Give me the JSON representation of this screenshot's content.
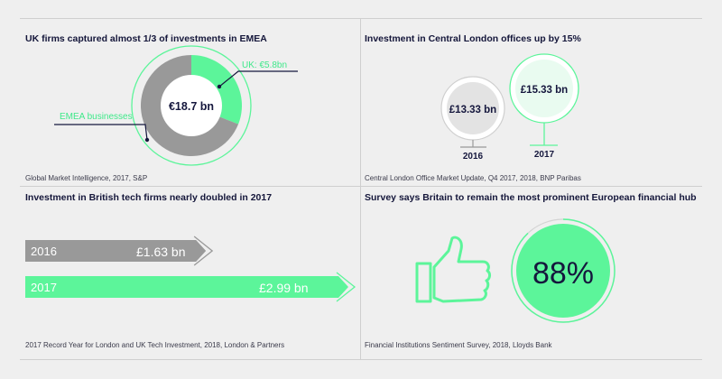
{
  "colors": {
    "green": "#5cf59a",
    "green_light": "#e9fbf0",
    "grey": "#999999",
    "grey_light": "#e3e3e3",
    "navy": "#15173d",
    "background": "#efefef"
  },
  "icons": {
    "thumbs_up": "thumbs-up-icon"
  },
  "panels": {
    "p1": {
      "title": "UK firms captured almost 1/3 of investments in EMEA",
      "source": "Global Market Intelligence, 2017, S&P"
    },
    "p2": {
      "title": "Investment in Central London offices up by 15%",
      "source": "Central London Office Market Update, Q4 2017, 2018, BNP Paribas"
    },
    "p3": {
      "title": "Investment in British tech firms nearly doubled in 2017",
      "source": "2017 Record Year for London and UK Tech Investment, 2018, London & Partners"
    },
    "p4": {
      "title": "Survey says Britain to remain the most prominent European financial hub",
      "source": "Financial Institutions Sentiment Survey, 2018, Lloyds Bank"
    }
  },
  "chart_data": [
    {
      "type": "pie",
      "variant": "donut",
      "center_label": "€18.7 bn",
      "slices": [
        {
          "label": "UK: €5.8bn",
          "value": 5.8,
          "color": "#5cf59a"
        },
        {
          "label": "EMEA businesses",
          "value": 12.9,
          "color": "#999999"
        }
      ]
    },
    {
      "type": "bubble",
      "points": [
        {
          "label": "2016",
          "value_label": "£13.33 bn",
          "value": 13.33
        },
        {
          "label": "2017",
          "value_label": "£15.33 bn",
          "value": 15.33
        }
      ]
    },
    {
      "type": "bar",
      "orientation": "horizontal",
      "categories": [
        "2016",
        "2017"
      ],
      "values": [
        1.63,
        2.99
      ],
      "value_labels": [
        "£1.63 bn",
        "£2.99 bn"
      ]
    },
    {
      "type": "gauge",
      "value": 88,
      "value_label": "88%"
    }
  ]
}
